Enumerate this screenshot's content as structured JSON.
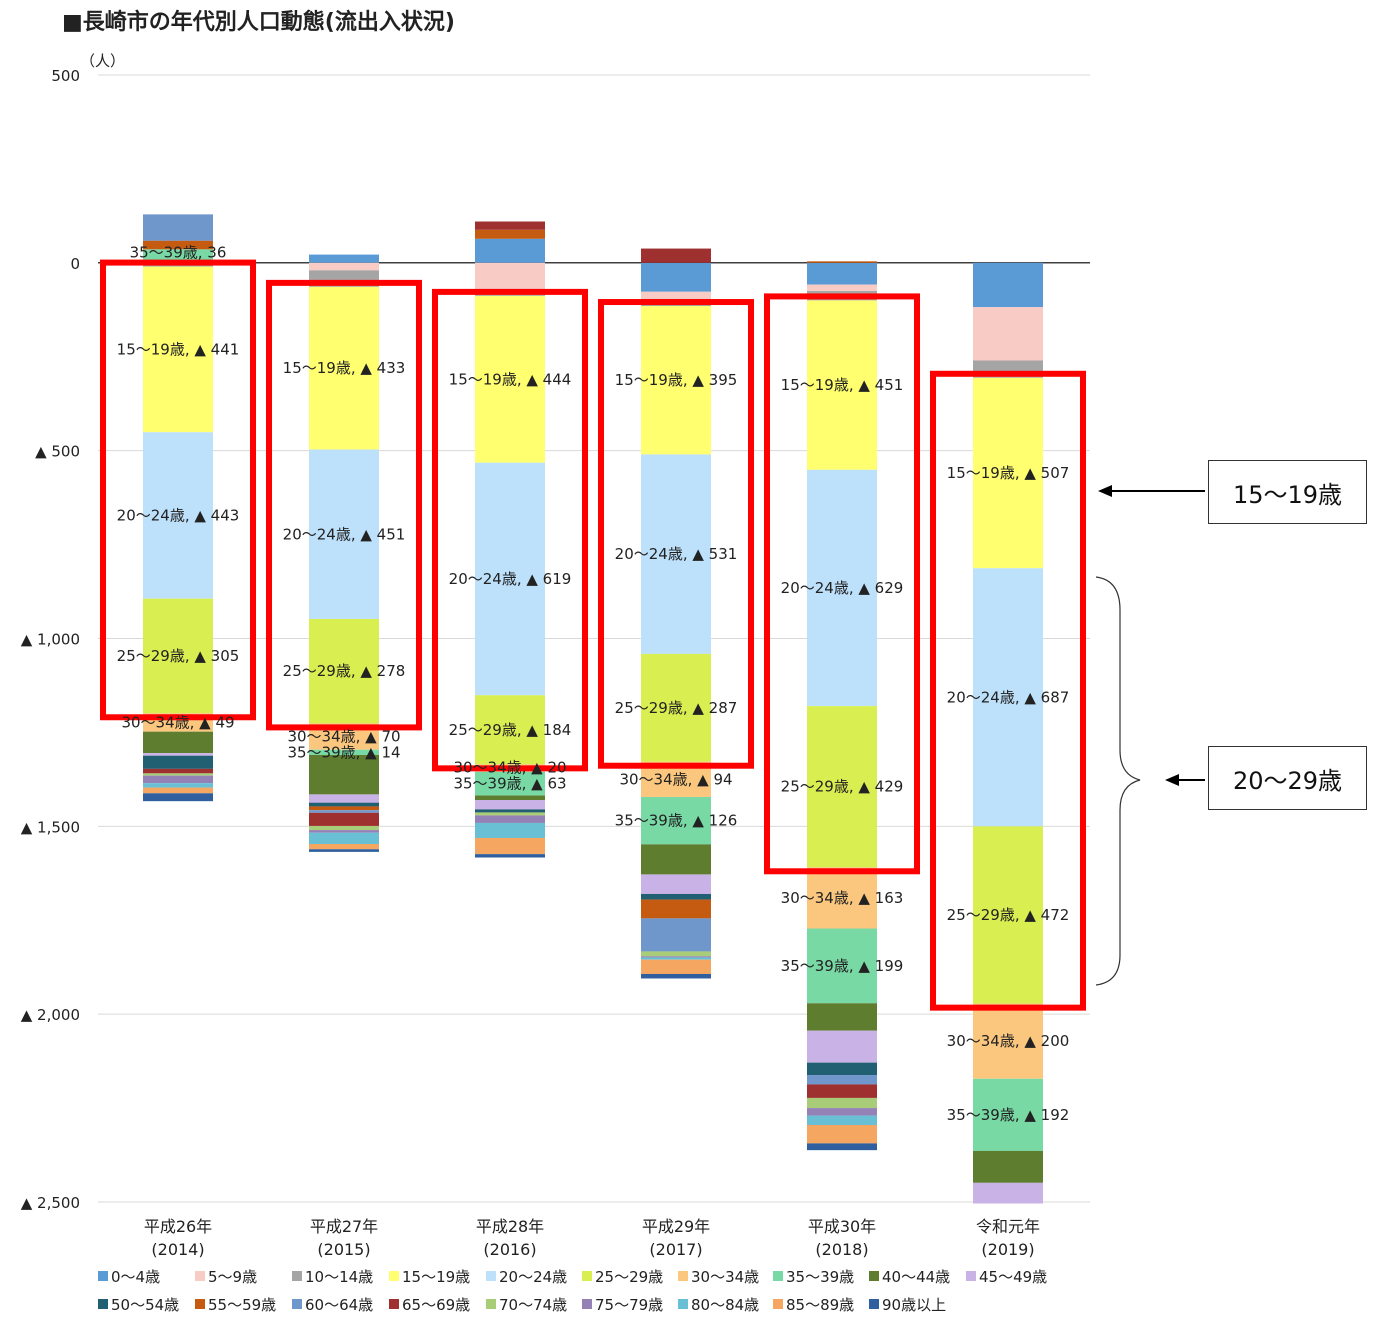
{
  "title": "■長崎市の年代別人口動態(流出入状況)",
  "annotations": {
    "callout_1": "15～19歳",
    "callout_2": "20～29歳"
  },
  "chart_data": {
    "type": "bar",
    "stacked": true,
    "unit_label": "（人）",
    "ylim": [
      -2500,
      500
    ],
    "yticks": [
      {
        "value": 500,
        "label": "500"
      },
      {
        "value": 0,
        "label": "0"
      },
      {
        "value": -500,
        "label": "▲ 500"
      },
      {
        "value": -1000,
        "label": "▲ 1,000"
      },
      {
        "value": -1500,
        "label": "▲ 1,500"
      },
      {
        "value": -2000,
        "label": "▲ 2,000"
      },
      {
        "value": -2500,
        "label": "▲ 2,500"
      }
    ],
    "categories": [
      [
        "平成26年",
        "(2014)"
      ],
      [
        "平成27年",
        "(2015)"
      ],
      [
        "平成28年",
        "(2016)"
      ],
      [
        "平成29年",
        "(2017)"
      ],
      [
        "平成30年",
        "(2018)"
      ],
      [
        "令和元年",
        "(2019)"
      ]
    ],
    "series": [
      {
        "name": "0～4歳",
        "color": "#5b9bd5",
        "values": [
          -3,
          22,
          64,
          -77,
          -58,
          -118
        ]
      },
      {
        "name": "5～9歳",
        "color": "#f8cbc4",
        "values": [
          -4,
          -20,
          -74,
          -19,
          -17,
          -142
        ]
      },
      {
        "name": "10～14歳",
        "color": "#a5a5a5",
        "values": [
          -3,
          -44,
          -14,
          -19,
          -25,
          -46
        ]
      },
      {
        "name": "15～19歳",
        "color": "#ffff70",
        "values": [
          -441,
          -433,
          -444,
          -395,
          -451,
          -507
        ]
      },
      {
        "name": "20～24歳",
        "color": "#bde0fb",
        "values": [
          -443,
          -451,
          -619,
          -531,
          -629,
          -687
        ]
      },
      {
        "name": "25～29歳",
        "color": "#d9ee50",
        "values": [
          -305,
          -278,
          -184,
          -287,
          -429,
          -472
        ]
      },
      {
        "name": "30～34歳",
        "color": "#fbc77e",
        "values": [
          -49,
          -70,
          -20,
          -94,
          -163,
          -200
        ]
      },
      {
        "name": "35～39歳",
        "color": "#78d9a5",
        "values": [
          36,
          -14,
          -63,
          -126,
          -199,
          -192
        ]
      },
      {
        "name": "40～44歳",
        "color": "#5e7d2f",
        "values": [
          -57,
          -105,
          -12,
          -80,
          -73,
          -85
        ]
      },
      {
        "name": "45～49歳",
        "color": "#c9b2e6",
        "values": [
          -7,
          -22,
          -25,
          -52,
          -85,
          -55
        ]
      },
      {
        "name": "50～54歳",
        "color": "#215f72",
        "values": [
          -35,
          -10,
          -8,
          -15,
          -33,
          0
        ]
      },
      {
        "name": "55～59歳",
        "color": "#c55a11",
        "values": [
          23,
          -10,
          24,
          -50,
          4,
          0
        ]
      },
      {
        "name": "60～64歳",
        "color": "#7097cc",
        "values": [
          70,
          -7,
          0,
          -88,
          -25,
          0
        ]
      },
      {
        "name": "65～69歳",
        "color": "#9e3030",
        "values": [
          -12,
          -35,
          22,
          38,
          -36,
          0
        ]
      },
      {
        "name": "70～74歳",
        "color": "#a9cc78",
        "values": [
          -6,
          -11,
          -8,
          -13,
          -27,
          0
        ]
      },
      {
        "name": "75～79歳",
        "color": "#9481b6",
        "values": [
          -20,
          -7,
          -20,
          -3,
          -20,
          0
        ]
      },
      {
        "name": "80～84歳",
        "color": "#69bfd3",
        "values": [
          -12,
          -30,
          -40,
          -6,
          -25,
          0
        ]
      },
      {
        "name": "85～89歳",
        "color": "#f5a660",
        "values": [
          -15,
          -14,
          -43,
          -38,
          -49,
          0
        ]
      },
      {
        "name": "90歳以上",
        "color": "#2f5f9e",
        "values": [
          -21,
          -7,
          -9,
          -12,
          -18,
          0
        ]
      }
    ],
    "data_labels": [
      [
        [
          "35～39歳",
          "36"
        ],
        [
          "15～19歳",
          "▲ 441"
        ],
        [
          "20～24歳",
          "▲ 443"
        ],
        [
          "25～29歳",
          "▲ 305"
        ],
        [
          "30～34歳",
          "▲ 49"
        ]
      ],
      [
        [
          "15～19歳",
          "▲ 433"
        ],
        [
          "20～24歳",
          "▲ 451"
        ],
        [
          "25～29歳",
          "▲ 278"
        ],
        [
          "30～34歳",
          "▲ 70"
        ],
        [
          "35～39歳",
          "▲ 14"
        ]
      ],
      [
        [
          "15～19歳",
          "▲ 444"
        ],
        [
          "20～24歳",
          "▲ 619"
        ],
        [
          "25～29歳",
          "▲ 184"
        ],
        [
          "30～34歳",
          "▲ 20"
        ],
        [
          "35～39歳",
          "▲ 63"
        ]
      ],
      [
        [
          "15～19歳",
          "▲ 395"
        ],
        [
          "20～24歳",
          "▲ 531"
        ],
        [
          "25～29歳",
          "▲ 287"
        ],
        [
          "30～34歳",
          "▲ 94"
        ],
        [
          "35～39歳",
          "▲ 126"
        ]
      ],
      [
        [
          "15～19歳",
          "▲ 451"
        ],
        [
          "20～24歳",
          "▲ 629"
        ],
        [
          "25～29歳",
          "▲ 429"
        ],
        [
          "30～34歳",
          "▲ 163"
        ],
        [
          "35～39歳",
          "▲ 199"
        ]
      ],
      [
        [
          "15～19歳",
          "▲ 507"
        ],
        [
          "20～24歳",
          "▲ 687"
        ],
        [
          "25～29歳",
          "▲ 472"
        ],
        [
          "30～34歳",
          "▲ 200"
        ],
        [
          "35～39歳",
          "▲ 192"
        ]
      ]
    ],
    "highlight_boxes": {
      "from_series": "15～19歳",
      "to_series": "25～29歳",
      "color": "#ff0000"
    },
    "legend_position": "bottom",
    "grid": true
  }
}
